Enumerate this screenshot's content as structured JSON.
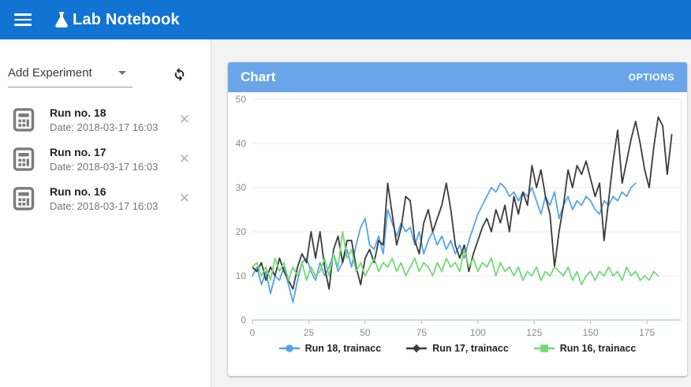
{
  "header": {
    "title": "Lab Notebook"
  },
  "sidebar": {
    "add_experiment_label": "Add Experiment",
    "runs": [
      {
        "title": "Run no. 18",
        "date": "Date: 2018-03-17 16:03"
      },
      {
        "title": "Run no. 17",
        "date": "Date: 2018-03-17 16:03"
      },
      {
        "title": "Run no. 16",
        "date": "Date: 2018-03-17 16:03"
      }
    ]
  },
  "chart_card": {
    "title": "Chart",
    "options_label": "OPTIONS"
  },
  "icons": {
    "menu": "hamburger-bars",
    "logo": "flask",
    "dropdown_caret": "caret-down",
    "refresh": "sync-arrows",
    "run": "calculator",
    "close_glyph": "✕"
  },
  "colors": {
    "app_bar": "#1173d2",
    "card_header": "#6ba5e9",
    "grid": "#e9e9e9",
    "axis": "#b9cde6",
    "tick_label": "#8a8a8a"
  },
  "chart_data": {
    "type": "line",
    "title": "",
    "xlabel": "",
    "ylabel": "",
    "xlim": [
      0,
      190
    ],
    "ylim": [
      0,
      50
    ],
    "x_ticks": [
      0,
      25,
      50,
      75,
      100,
      125,
      150,
      175
    ],
    "y_ticks": [
      0,
      10,
      20,
      30,
      40,
      50
    ],
    "grid": "horizontal",
    "legend_position": "bottom",
    "series": [
      {
        "name": "Run 18, trainacc",
        "color": "#55a4ea",
        "marker": "circle",
        "x_start": 0,
        "x_step": 2,
        "values": [
          10,
          12,
          8,
          11,
          6,
          10,
          9,
          12,
          8,
          4,
          9,
          13,
          14,
          11,
          9,
          13,
          10,
          12,
          15,
          11,
          13,
          16,
          12,
          17,
          21,
          23,
          17,
          16,
          19,
          15,
          25,
          22,
          19,
          22,
          20,
          21,
          17,
          20,
          15,
          18,
          20,
          17,
          19,
          16,
          18,
          15,
          17,
          14,
          18,
          21,
          24,
          26,
          28,
          30,
          29,
          31,
          30,
          28,
          29,
          27,
          29,
          28,
          30,
          27,
          24,
          28,
          26,
          29,
          23,
          26,
          28,
          25,
          27,
          26,
          28,
          27,
          25,
          24,
          27,
          26,
          28,
          27,
          29,
          28,
          30,
          31
        ]
      },
      {
        "name": "Run 17, trainacc",
        "color": "#3b3b3b",
        "marker": "diamond",
        "x_start": 0,
        "x_step": 2,
        "values": [
          12,
          11,
          13,
          9,
          12,
          10,
          14,
          11,
          9,
          7,
          12,
          15,
          13,
          20,
          14,
          20,
          12,
          7,
          16,
          19,
          13,
          18,
          18,
          12,
          8,
          14,
          16,
          13,
          18,
          17,
          31,
          24,
          17,
          21,
          28,
          27,
          18,
          15,
          22,
          25,
          20,
          23,
          26,
          31,
          25,
          17,
          14,
          17,
          11,
          15,
          18,
          21,
          23,
          20,
          25,
          22,
          26,
          20,
          28,
          24,
          29,
          26,
          35,
          30,
          34,
          28,
          24,
          12,
          20,
          26,
          34,
          30,
          35,
          33,
          36,
          32,
          28,
          31,
          18,
          27,
          36,
          43,
          31,
          36,
          41,
          45,
          40,
          34,
          30,
          39,
          46,
          44,
          33,
          42
        ]
      },
      {
        "name": "Run 16, trainacc",
        "color": "#74d974",
        "marker": "square",
        "x_start": 0,
        "x_step": 2,
        "values": [
          12,
          13,
          10,
          12,
          9,
          14,
          11,
          13,
          9,
          12,
          10,
          13,
          9,
          12,
          10,
          11,
          14,
          10,
          15,
          12,
          20,
          14,
          16,
          11,
          13,
          10,
          12,
          14,
          11,
          13,
          12,
          14,
          11,
          13,
          10,
          12,
          14,
          11,
          13,
          12,
          10,
          13,
          11,
          14,
          12,
          13,
          11,
          16,
          12,
          14,
          11,
          13,
          12,
          14,
          10,
          13,
          11,
          12,
          10,
          12,
          9,
          11,
          10,
          12,
          9,
          11,
          10,
          12,
          11,
          10,
          12,
          9,
          11,
          8,
          10,
          11,
          9,
          11,
          10,
          12,
          10,
          11,
          9,
          12,
          10,
          11,
          9,
          10,
          9,
          11,
          10
        ]
      }
    ]
  }
}
